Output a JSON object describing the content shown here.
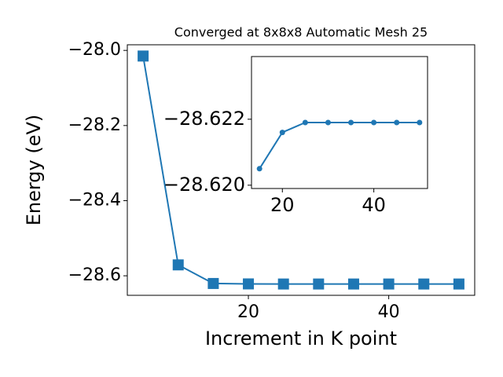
{
  "chart_data": [
    {
      "type": "line",
      "title": "Converged at 8x8x8 Automatic Mesh 25",
      "xlabel": "Increment in K point",
      "ylabel": "Energy (eV)",
      "x": [
        5,
        10,
        15,
        20,
        25,
        30,
        35,
        40,
        45,
        50
      ],
      "series": [
        {
          "color": "#1f77b4",
          "marker": "square",
          "values": [
            -28.015,
            -28.571,
            -28.6205,
            -28.6216,
            -28.6219,
            -28.6219,
            -28.6219,
            -28.6219,
            -28.6219,
            -28.6219
          ]
        }
      ],
      "xlim": [
        2.75,
        52.25
      ],
      "ylim": [
        -28.652,
        -27.985
      ],
      "xticks": [
        20,
        40
      ],
      "yticks": [
        {
          "value": -28.6,
          "label": "−28.6"
        },
        {
          "value": -28.4,
          "label": "−28.4"
        },
        {
          "value": -28.2,
          "label": "−28.2"
        },
        {
          "value": -28.0,
          "label": "−28.0"
        }
      ]
    },
    {
      "type": "line",
      "x": [
        15,
        20,
        25,
        30,
        35,
        40,
        45,
        50
      ],
      "series": [
        {
          "color": "#1f77b4",
          "marker": "circle",
          "values": [
            -28.6205,
            -28.6216,
            -28.6219,
            -28.6219,
            -28.6219,
            -28.6219,
            -28.6219,
            -28.6219
          ]
        }
      ],
      "xlim": [
        13.25,
        51.75
      ],
      "ylim": [
        -28.6199,
        -28.6239
      ],
      "xticks": [
        20,
        40
      ],
      "yticks": [
        {
          "value": -28.62,
          "label": "−28.620"
        },
        {
          "value": -28.622,
          "label": "−28.622"
        }
      ]
    }
  ]
}
